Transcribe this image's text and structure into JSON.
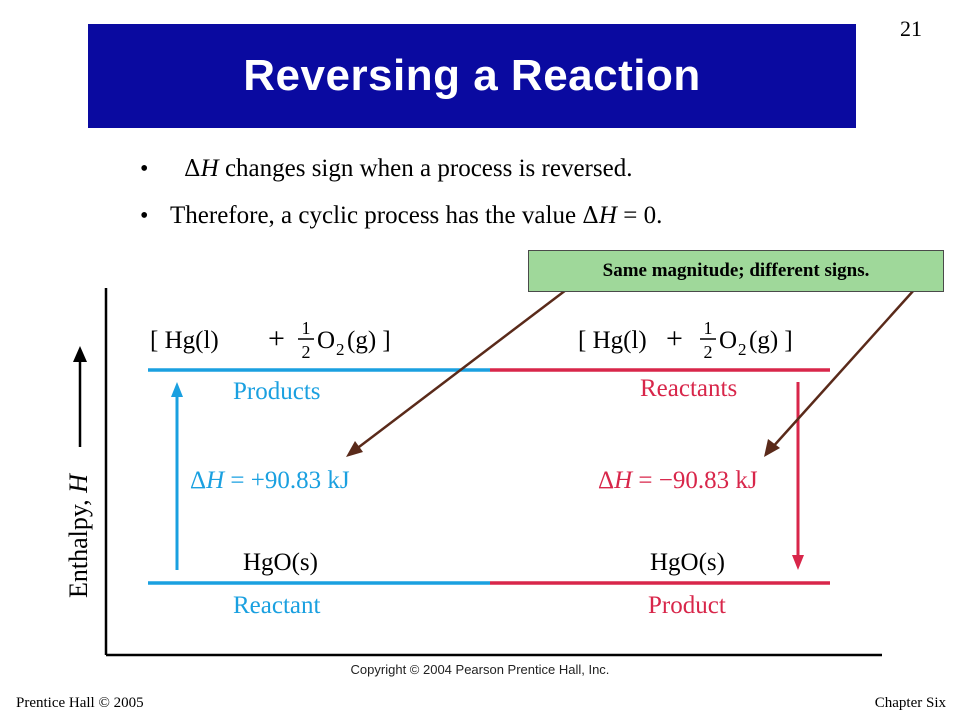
{
  "slide": {
    "title": "Reversing a Reaction",
    "number": "21"
  },
  "bullets": [
    {
      "delta": "Δ",
      "var": "H",
      "rest": " changes sign when a process is reversed."
    },
    {
      "pre": "Therefore, a cyclic process has the value ",
      "delta": "Δ",
      "var": "H",
      "rest": " = 0."
    }
  ],
  "callout": "Same magnitude; different signs.",
  "diagram": {
    "axis_label_prefix": "Enthalpy, ",
    "axis_label_var": "H",
    "left": {
      "top_formula": {
        "open": "[ Hg(l)",
        "plus": "+",
        "frac_num": "1",
        "frac_den": "2",
        "o": "O",
        "sub": "2",
        "close": "(g) ]"
      },
      "top_label": "Products",
      "delta_h": {
        "delta": "Δ",
        "var": "H",
        "eq": " = +90.83 kJ"
      },
      "bottom_formula": "HgO(s)",
      "bottom_label": "Reactant"
    },
    "right": {
      "top_formula": {
        "open": "[ Hg(l)",
        "plus": "+",
        "frac_num": "1",
        "frac_den": "2",
        "o": "O",
        "sub": "2",
        "close": "(g) ]"
      },
      "top_label": "Reactants",
      "delta_h": {
        "delta": "Δ",
        "var": "H",
        "eq": " = −90.83 kJ"
      },
      "bottom_formula": "HgO(s)",
      "bottom_label": "Product"
    },
    "colors": {
      "blue": "#1aa0e0",
      "red": "#d8264a",
      "callout_arrow": "#5a2a1a",
      "callout_bg": "#9fd89a"
    }
  },
  "copyright": "Copyright © 2004 Pearson Prentice Hall, Inc.",
  "footer": {
    "left": "Prentice Hall © 2005",
    "right": "Chapter Six"
  }
}
